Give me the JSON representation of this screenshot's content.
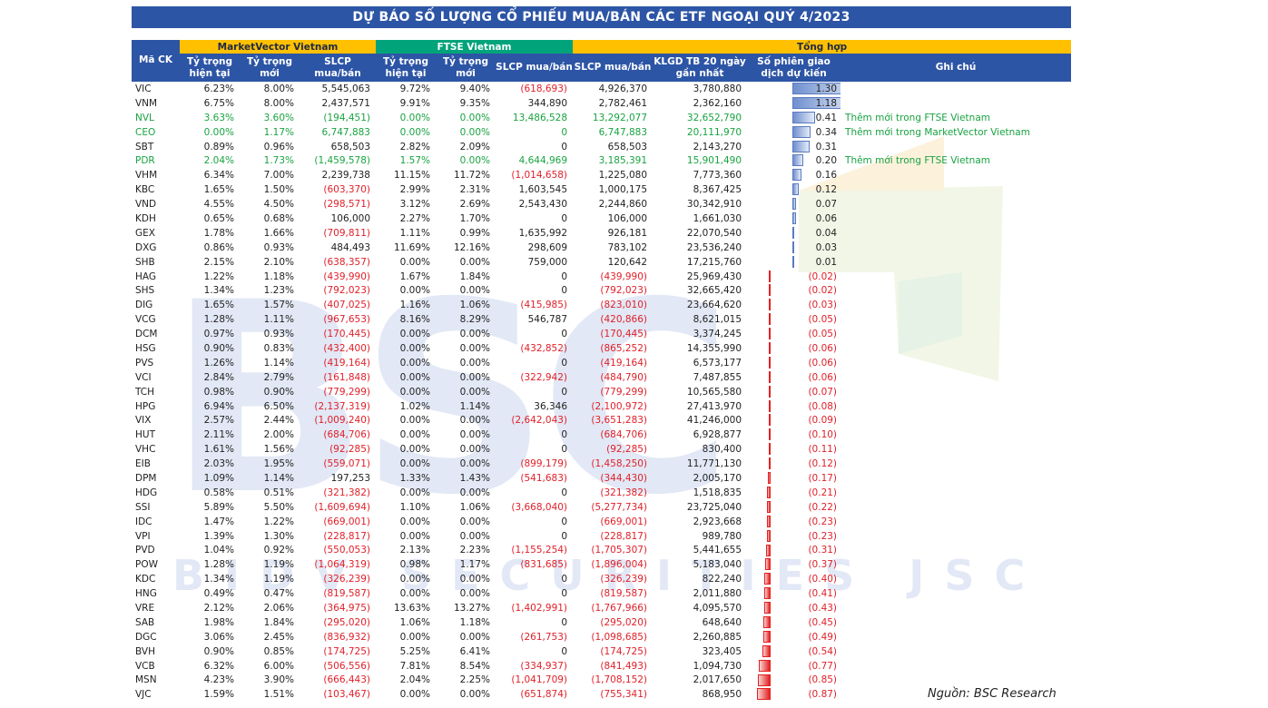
{
  "title": "DỰ BÁO SỐ LƯỢNG CỔ PHIẾU MUA/BÁN CÁC ETF NGOẠI QUÝ 4/2023",
  "groups": {
    "marketvector": "MarketVector Vietnam",
    "ftse": "FTSE Vietnam",
    "summary": "Tổng hợp"
  },
  "columns": {
    "code": "Mã CK",
    "mv_current": "Tỷ trọng hiện tại",
    "mv_new": "Tỷ trọng mới",
    "mv_slcp": "SLCP mua/bán",
    "ftse_current": "Tỷ trọng hiện tại",
    "ftse_new": "Tỷ trọng mới",
    "ftse_slcp": "SLCP mua/bán",
    "total_slcp": "SLCP mua/bán",
    "klgd": "KLGD TB 20 ngày gần nhất",
    "sessions": "Số phiên giao dịch dự kiến",
    "note": "Ghi chú"
  },
  "colors": {
    "header_blue": "#2d55a5",
    "group_yellow": "#ffc000",
    "group_green": "#00a37a",
    "negative_red": "#e0202a",
    "note_green": "#19a341",
    "bar_blue": "#6f8fcf",
    "bar_red": "#e42020",
    "watermark": "#d7e1f3"
  },
  "watermark": {
    "logo": "BSC",
    "tagline": "BIDV SECURITIES JSC"
  },
  "rows": [
    {
      "code": "VIC",
      "mv_cur": "6.23%",
      "mv_new": "8.00%",
      "mv_slcp": "5,545,063",
      "ftse_cur": "9.72%",
      "ftse_new": "9.40%",
      "ftse_slcp": "(618,693)",
      "total": "4,926,370",
      "klgd": "3,780,880",
      "sessions": "1.30",
      "sessions_value": 1.3,
      "note": ""
    },
    {
      "code": "VNM",
      "mv_cur": "6.75%",
      "mv_new": "8.00%",
      "mv_slcp": "2,437,571",
      "ftse_cur": "9.91%",
      "ftse_new": "9.35%",
      "ftse_slcp": "344,890",
      "total": "2,782,461",
      "klgd": "2,362,160",
      "sessions": "1.18",
      "sessions_value": 1.18,
      "note": ""
    },
    {
      "code": "NVL",
      "mv_cur": "3.63%",
      "mv_new": "3.60%",
      "mv_slcp": "(194,451)",
      "ftse_cur": "0.00%",
      "ftse_new": "0.00%",
      "ftse_slcp": "13,486,528",
      "total": "13,292,077",
      "klgd": "32,652,790",
      "sessions": "0.41",
      "sessions_value": 0.41,
      "note": "Thêm mới trong FTSE Vietnam"
    },
    {
      "code": "CEO",
      "mv_cur": "0.00%",
      "mv_new": "1.17%",
      "mv_slcp": "6,747,883",
      "ftse_cur": "0.00%",
      "ftse_new": "0.00%",
      "ftse_slcp": "0",
      "total": "6,747,883",
      "klgd": "20,111,970",
      "sessions": "0.34",
      "sessions_value": 0.34,
      "note": "Thêm mới trong MarketVector Vietnam"
    },
    {
      "code": "SBT",
      "mv_cur": "0.89%",
      "mv_new": "0.96%",
      "mv_slcp": "658,503",
      "ftse_cur": "2.82%",
      "ftse_new": "2.09%",
      "ftse_slcp": "0",
      "total": "658,503",
      "klgd": "2,143,270",
      "sessions": "0.31",
      "sessions_value": 0.31,
      "note": ""
    },
    {
      "code": "PDR",
      "mv_cur": "2.04%",
      "mv_new": "1.73%",
      "mv_slcp": "(1,459,578)",
      "ftse_cur": "1.57%",
      "ftse_new": "0.00%",
      "ftse_slcp": "4,644,969",
      "total": "3,185,391",
      "klgd": "15,901,490",
      "sessions": "0.20",
      "sessions_value": 0.2,
      "note": "Thêm mới trong FTSE Vietnam"
    },
    {
      "code": "VHM",
      "mv_cur": "6.34%",
      "mv_new": "7.00%",
      "mv_slcp": "2,239,738",
      "ftse_cur": "11.15%",
      "ftse_new": "11.72%",
      "ftse_slcp": "(1,014,658)",
      "total": "1,225,080",
      "klgd": "7,773,360",
      "sessions": "0.16",
      "sessions_value": 0.16,
      "note": ""
    },
    {
      "code": "KBC",
      "mv_cur": "1.65%",
      "mv_new": "1.50%",
      "mv_slcp": "(603,370)",
      "ftse_cur": "2.99%",
      "ftse_new": "2.31%",
      "ftse_slcp": "1,603,545",
      "total": "1,000,175",
      "klgd": "8,367,425",
      "sessions": "0.12",
      "sessions_value": 0.12,
      "note": ""
    },
    {
      "code": "VND",
      "mv_cur": "4.55%",
      "mv_new": "4.50%",
      "mv_slcp": "(298,571)",
      "ftse_cur": "3.12%",
      "ftse_new": "2.69%",
      "ftse_slcp": "2,543,430",
      "total": "2,244,860",
      "klgd": "30,342,910",
      "sessions": "0.07",
      "sessions_value": 0.07,
      "note": ""
    },
    {
      "code": "KDH",
      "mv_cur": "0.65%",
      "mv_new": "0.68%",
      "mv_slcp": "106,000",
      "ftse_cur": "2.27%",
      "ftse_new": "1.70%",
      "ftse_slcp": "0",
      "total": "106,000",
      "klgd": "1,661,030",
      "sessions": "0.06",
      "sessions_value": 0.06,
      "note": ""
    },
    {
      "code": "GEX",
      "mv_cur": "1.78%",
      "mv_new": "1.66%",
      "mv_slcp": "(709,811)",
      "ftse_cur": "1.11%",
      "ftse_new": "0.99%",
      "ftse_slcp": "1,635,992",
      "total": "926,181",
      "klgd": "22,070,540",
      "sessions": "0.04",
      "sessions_value": 0.04,
      "note": ""
    },
    {
      "code": "DXG",
      "mv_cur": "0.86%",
      "mv_new": "0.93%",
      "mv_slcp": "484,493",
      "ftse_cur": "11.69%",
      "ftse_new": "12.16%",
      "ftse_slcp": "298,609",
      "total": "783,102",
      "klgd": "23,536,240",
      "sessions": "0.03",
      "sessions_value": 0.03,
      "note": ""
    },
    {
      "code": "SHB",
      "mv_cur": "2.15%",
      "mv_new": "2.10%",
      "mv_slcp": "(638,357)",
      "ftse_cur": "0.00%",
      "ftse_new": "0.00%",
      "ftse_slcp": "759,000",
      "total": "120,642",
      "klgd": "17,215,760",
      "sessions": "0.01",
      "sessions_value": 0.01,
      "note": ""
    },
    {
      "code": "HAG",
      "mv_cur": "1.22%",
      "mv_new": "1.18%",
      "mv_slcp": "(439,990)",
      "ftse_cur": "1.67%",
      "ftse_new": "1.84%",
      "ftse_slcp": "0",
      "total": "(439,990)",
      "klgd": "25,969,430",
      "sessions": "(0.02)",
      "sessions_value": -0.02,
      "note": ""
    },
    {
      "code": "SHS",
      "mv_cur": "1.34%",
      "mv_new": "1.23%",
      "mv_slcp": "(792,023)",
      "ftse_cur": "0.00%",
      "ftse_new": "0.00%",
      "ftse_slcp": "0",
      "total": "(792,023)",
      "klgd": "32,665,420",
      "sessions": "(0.02)",
      "sessions_value": -0.02,
      "note": ""
    },
    {
      "code": "DIG",
      "mv_cur": "1.65%",
      "mv_new": "1.57%",
      "mv_slcp": "(407,025)",
      "ftse_cur": "1.16%",
      "ftse_new": "1.06%",
      "ftse_slcp": "(415,985)",
      "total": "(823,010)",
      "klgd": "23,664,620",
      "sessions": "(0.03)",
      "sessions_value": -0.03,
      "note": ""
    },
    {
      "code": "VCG",
      "mv_cur": "1.28%",
      "mv_new": "1.11%",
      "mv_slcp": "(967,653)",
      "ftse_cur": "8.16%",
      "ftse_new": "8.29%",
      "ftse_slcp": "546,787",
      "total": "(420,866)",
      "klgd": "8,621,015",
      "sessions": "(0.05)",
      "sessions_value": -0.05,
      "note": ""
    },
    {
      "code": "DCM",
      "mv_cur": "0.97%",
      "mv_new": "0.93%",
      "mv_slcp": "(170,445)",
      "ftse_cur": "0.00%",
      "ftse_new": "0.00%",
      "ftse_slcp": "0",
      "total": "(170,445)",
      "klgd": "3,374,245",
      "sessions": "(0.05)",
      "sessions_value": -0.05,
      "note": ""
    },
    {
      "code": "HSG",
      "mv_cur": "0.90%",
      "mv_new": "0.83%",
      "mv_slcp": "(432,400)",
      "ftse_cur": "0.00%",
      "ftse_new": "0.00%",
      "ftse_slcp": "(432,852)",
      "total": "(865,252)",
      "klgd": "14,355,990",
      "sessions": "(0.06)",
      "sessions_value": -0.06,
      "note": ""
    },
    {
      "code": "PVS",
      "mv_cur": "1.26%",
      "mv_new": "1.14%",
      "mv_slcp": "(419,164)",
      "ftse_cur": "0.00%",
      "ftse_new": "0.00%",
      "ftse_slcp": "0",
      "total": "(419,164)",
      "klgd": "6,573,177",
      "sessions": "(0.06)",
      "sessions_value": -0.06,
      "note": ""
    },
    {
      "code": "VCI",
      "mv_cur": "2.84%",
      "mv_new": "2.79%",
      "mv_slcp": "(161,848)",
      "ftse_cur": "0.00%",
      "ftse_new": "0.00%",
      "ftse_slcp": "(322,942)",
      "total": "(484,790)",
      "klgd": "7,487,855",
      "sessions": "(0.06)",
      "sessions_value": -0.06,
      "note": ""
    },
    {
      "code": "TCH",
      "mv_cur": "0.98%",
      "mv_new": "0.90%",
      "mv_slcp": "(779,299)",
      "ftse_cur": "0.00%",
      "ftse_new": "0.00%",
      "ftse_slcp": "0",
      "total": "(779,299)",
      "klgd": "10,565,580",
      "sessions": "(0.07)",
      "sessions_value": -0.07,
      "note": ""
    },
    {
      "code": "HPG",
      "mv_cur": "6.94%",
      "mv_new": "6.50%",
      "mv_slcp": "(2,137,319)",
      "ftse_cur": "1.02%",
      "ftse_new": "1.14%",
      "ftse_slcp": "36,346",
      "total": "(2,100,972)",
      "klgd": "27,413,970",
      "sessions": "(0.08)",
      "sessions_value": -0.08,
      "note": ""
    },
    {
      "code": "VIX",
      "mv_cur": "2.57%",
      "mv_new": "2.44%",
      "mv_slcp": "(1,009,240)",
      "ftse_cur": "0.00%",
      "ftse_new": "0.00%",
      "ftse_slcp": "(2,642,043)",
      "total": "(3,651,283)",
      "klgd": "41,246,000",
      "sessions": "(0.09)",
      "sessions_value": -0.09,
      "note": ""
    },
    {
      "code": "HUT",
      "mv_cur": "2.11%",
      "mv_new": "2.00%",
      "mv_slcp": "(684,706)",
      "ftse_cur": "0.00%",
      "ftse_new": "0.00%",
      "ftse_slcp": "0",
      "total": "(684,706)",
      "klgd": "6,928,877",
      "sessions": "(0.10)",
      "sessions_value": -0.1,
      "note": ""
    },
    {
      "code": "VHC",
      "mv_cur": "1.61%",
      "mv_new": "1.56%",
      "mv_slcp": "(92,285)",
      "ftse_cur": "0.00%",
      "ftse_new": "0.00%",
      "ftse_slcp": "0",
      "total": "(92,285)",
      "klgd": "830,400",
      "sessions": "(0.11)",
      "sessions_value": -0.11,
      "note": ""
    },
    {
      "code": "EIB",
      "mv_cur": "2.03%",
      "mv_new": "1.95%",
      "mv_slcp": "(559,071)",
      "ftse_cur": "0.00%",
      "ftse_new": "0.00%",
      "ftse_slcp": "(899,179)",
      "total": "(1,458,250)",
      "klgd": "11,771,130",
      "sessions": "(0.12)",
      "sessions_value": -0.12,
      "note": ""
    },
    {
      "code": "DPM",
      "mv_cur": "1.09%",
      "mv_new": "1.14%",
      "mv_slcp": "197,253",
      "ftse_cur": "1.33%",
      "ftse_new": "1.43%",
      "ftse_slcp": "(541,683)",
      "total": "(344,430)",
      "klgd": "2,005,170",
      "sessions": "(0.17)",
      "sessions_value": -0.17,
      "note": ""
    },
    {
      "code": "HDG",
      "mv_cur": "0.58%",
      "mv_new": "0.51%",
      "mv_slcp": "(321,382)",
      "ftse_cur": "0.00%",
      "ftse_new": "0.00%",
      "ftse_slcp": "0",
      "total": "(321,382)",
      "klgd": "1,518,835",
      "sessions": "(0.21)",
      "sessions_value": -0.21,
      "note": ""
    },
    {
      "code": "SSI",
      "mv_cur": "5.89%",
      "mv_new": "5.50%",
      "mv_slcp": "(1,609,694)",
      "ftse_cur": "1.10%",
      "ftse_new": "1.06%",
      "ftse_slcp": "(3,668,040)",
      "total": "(5,277,734)",
      "klgd": "23,725,040",
      "sessions": "(0.22)",
      "sessions_value": -0.22,
      "note": ""
    },
    {
      "code": "IDC",
      "mv_cur": "1.47%",
      "mv_new": "1.22%",
      "mv_slcp": "(669,001)",
      "ftse_cur": "0.00%",
      "ftse_new": "0.00%",
      "ftse_slcp": "0",
      "total": "(669,001)",
      "klgd": "2,923,668",
      "sessions": "(0.23)",
      "sessions_value": -0.23,
      "note": ""
    },
    {
      "code": "VPI",
      "mv_cur": "1.39%",
      "mv_new": "1.30%",
      "mv_slcp": "(228,817)",
      "ftse_cur": "0.00%",
      "ftse_new": "0.00%",
      "ftse_slcp": "0",
      "total": "(228,817)",
      "klgd": "989,780",
      "sessions": "(0.23)",
      "sessions_value": -0.23,
      "note": ""
    },
    {
      "code": "PVD",
      "mv_cur": "1.04%",
      "mv_new": "0.92%",
      "mv_slcp": "(550,053)",
      "ftse_cur": "2.13%",
      "ftse_new": "2.23%",
      "ftse_slcp": "(1,155,254)",
      "total": "(1,705,307)",
      "klgd": "5,441,655",
      "sessions": "(0.31)",
      "sessions_value": -0.31,
      "note": ""
    },
    {
      "code": "POW",
      "mv_cur": "1.28%",
      "mv_new": "1.19%",
      "mv_slcp": "(1,064,319)",
      "ftse_cur": "0.98%",
      "ftse_new": "1.17%",
      "ftse_slcp": "(831,685)",
      "total": "(1,896,004)",
      "klgd": "5,183,040",
      "sessions": "(0.37)",
      "sessions_value": -0.37,
      "note": ""
    },
    {
      "code": "KDC",
      "mv_cur": "1.34%",
      "mv_new": "1.19%",
      "mv_slcp": "(326,239)",
      "ftse_cur": "0.00%",
      "ftse_new": "0.00%",
      "ftse_slcp": "0",
      "total": "(326,239)",
      "klgd": "822,240",
      "sessions": "(0.40)",
      "sessions_value": -0.4,
      "note": ""
    },
    {
      "code": "HNG",
      "mv_cur": "0.49%",
      "mv_new": "0.47%",
      "mv_slcp": "(819,587)",
      "ftse_cur": "0.00%",
      "ftse_new": "0.00%",
      "ftse_slcp": "0",
      "total": "(819,587)",
      "klgd": "2,011,880",
      "sessions": "(0.41)",
      "sessions_value": -0.41,
      "note": ""
    },
    {
      "code": "VRE",
      "mv_cur": "2.12%",
      "mv_new": "2.06%",
      "mv_slcp": "(364,975)",
      "ftse_cur": "13.63%",
      "ftse_new": "13.27%",
      "ftse_slcp": "(1,402,991)",
      "total": "(1,767,966)",
      "klgd": "4,095,570",
      "sessions": "(0.43)",
      "sessions_value": -0.43,
      "note": ""
    },
    {
      "code": "SAB",
      "mv_cur": "1.98%",
      "mv_new": "1.84%",
      "mv_slcp": "(295,020)",
      "ftse_cur": "1.06%",
      "ftse_new": "1.18%",
      "ftse_slcp": "0",
      "total": "(295,020)",
      "klgd": "648,640",
      "sessions": "(0.45)",
      "sessions_value": -0.45,
      "note": ""
    },
    {
      "code": "DGC",
      "mv_cur": "3.06%",
      "mv_new": "2.45%",
      "mv_slcp": "(836,932)",
      "ftse_cur": "0.00%",
      "ftse_new": "0.00%",
      "ftse_slcp": "(261,753)",
      "total": "(1,098,685)",
      "klgd": "2,260,885",
      "sessions": "(0.49)",
      "sessions_value": -0.49,
      "note": ""
    },
    {
      "code": "BVH",
      "mv_cur": "0.90%",
      "mv_new": "0.85%",
      "mv_slcp": "(174,725)",
      "ftse_cur": "5.25%",
      "ftse_new": "6.41%",
      "ftse_slcp": "0",
      "total": "(174,725)",
      "klgd": "323,405",
      "sessions": "(0.54)",
      "sessions_value": -0.54,
      "note": ""
    },
    {
      "code": "VCB",
      "mv_cur": "6.32%",
      "mv_new": "6.00%",
      "mv_slcp": "(506,556)",
      "ftse_cur": "7.81%",
      "ftse_new": "8.54%",
      "ftse_slcp": "(334,937)",
      "total": "(841,493)",
      "klgd": "1,094,730",
      "sessions": "(0.77)",
      "sessions_value": -0.77,
      "note": ""
    },
    {
      "code": "MSN",
      "mv_cur": "4.23%",
      "mv_new": "3.90%",
      "mv_slcp": "(666,443)",
      "ftse_cur": "2.04%",
      "ftse_new": "2.25%",
      "ftse_slcp": "(1,041,709)",
      "total": "(1,708,152)",
      "klgd": "2,017,650",
      "sessions": "(0.85)",
      "sessions_value": -0.85,
      "note": ""
    },
    {
      "code": "VJC",
      "mv_cur": "1.59%",
      "mv_new": "1.51%",
      "mv_slcp": "(103,467)",
      "ftse_cur": "0.00%",
      "ftse_new": "0.00%",
      "ftse_slcp": "(651,874)",
      "total": "(755,341)",
      "klgd": "868,950",
      "sessions": "(0.87)",
      "sessions_value": -0.87,
      "note": ""
    }
  ],
  "source": "Nguồn: BSC Research"
}
